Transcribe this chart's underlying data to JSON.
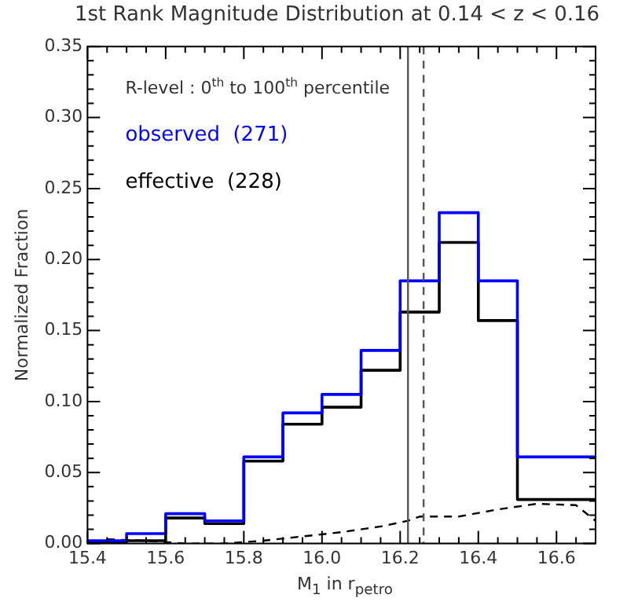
{
  "chart_data": {
    "type": "histogram",
    "title": "1st Rank Magnitude Distribution at 0.14 < z < 0.16",
    "xlabel": "M$_{1}$ in r$_{petro}$",
    "ylabel": "Normalized Fraction",
    "bins": [
      15.4,
      15.5,
      15.6,
      15.7,
      15.8,
      15.9,
      16.0,
      16.1,
      16.2,
      16.3,
      16.4,
      16.5,
      16.6,
      16.7
    ],
    "series": [
      {
        "name": "observed  (271)",
        "color": "#0000ff",
        "values": [
          0.002,
          0.007,
          0.021,
          0.016,
          0.061,
          0.092,
          0.105,
          0.136,
          0.185,
          0.233,
          0.185,
          0.061,
          0.061
        ]
      },
      {
        "name": "effective  (228)",
        "color": "#000000",
        "values": [
          0.001,
          0.002,
          0.018,
          0.014,
          0.058,
          0.084,
          0.096,
          0.122,
          0.163,
          0.212,
          0.157,
          0.031,
          0.031
        ]
      },
      {
        "type": "line",
        "color": "#000000",
        "line_style": "dashed",
        "x": [
          15.45,
          15.55,
          15.65,
          15.75,
          15.85,
          15.95,
          16.05,
          16.15,
          16.22,
          16.25,
          16.35,
          16.45,
          16.55,
          16.65,
          16.7
        ],
        "values": [
          0.003,
          0.002,
          0.0,
          0.0,
          0.002,
          0.005,
          0.008,
          0.012,
          0.016,
          0.019,
          0.019,
          0.024,
          0.028,
          0.027,
          0.016
        ]
      }
    ],
    "ref_lines": [
      {
        "axis": "x",
        "value": 16.22,
        "color": "#555555",
        "line_style": "solid"
      },
      {
        "axis": "x",
        "value": 16.26,
        "color": "#555555",
        "line_style": "dashed"
      }
    ],
    "annotations": [
      "R-level : 0$^{th}$ to 100$^{th}$ percentile"
    ],
    "legend": "top left",
    "xlim": [
      15.4,
      16.7
    ],
    "xticks": [
      15.4,
      15.6,
      15.8,
      {
        "value": 16.0,
        "label": "16.0"
      },
      16.2,
      16.4,
      16.6
    ],
    "ylim": [
      0,
      0.35
    ],
    "yticks": [
      {
        "value": 0,
        "label": "0.00"
      },
      0.05,
      {
        "value": 0.1,
        "label": "0.10"
      },
      0.15,
      {
        "value": 0.2,
        "label": "0.20"
      },
      0.25,
      {
        "value": 0.3,
        "label": "0.30"
      },
      0.35
    ],
    "grid": false
  }
}
